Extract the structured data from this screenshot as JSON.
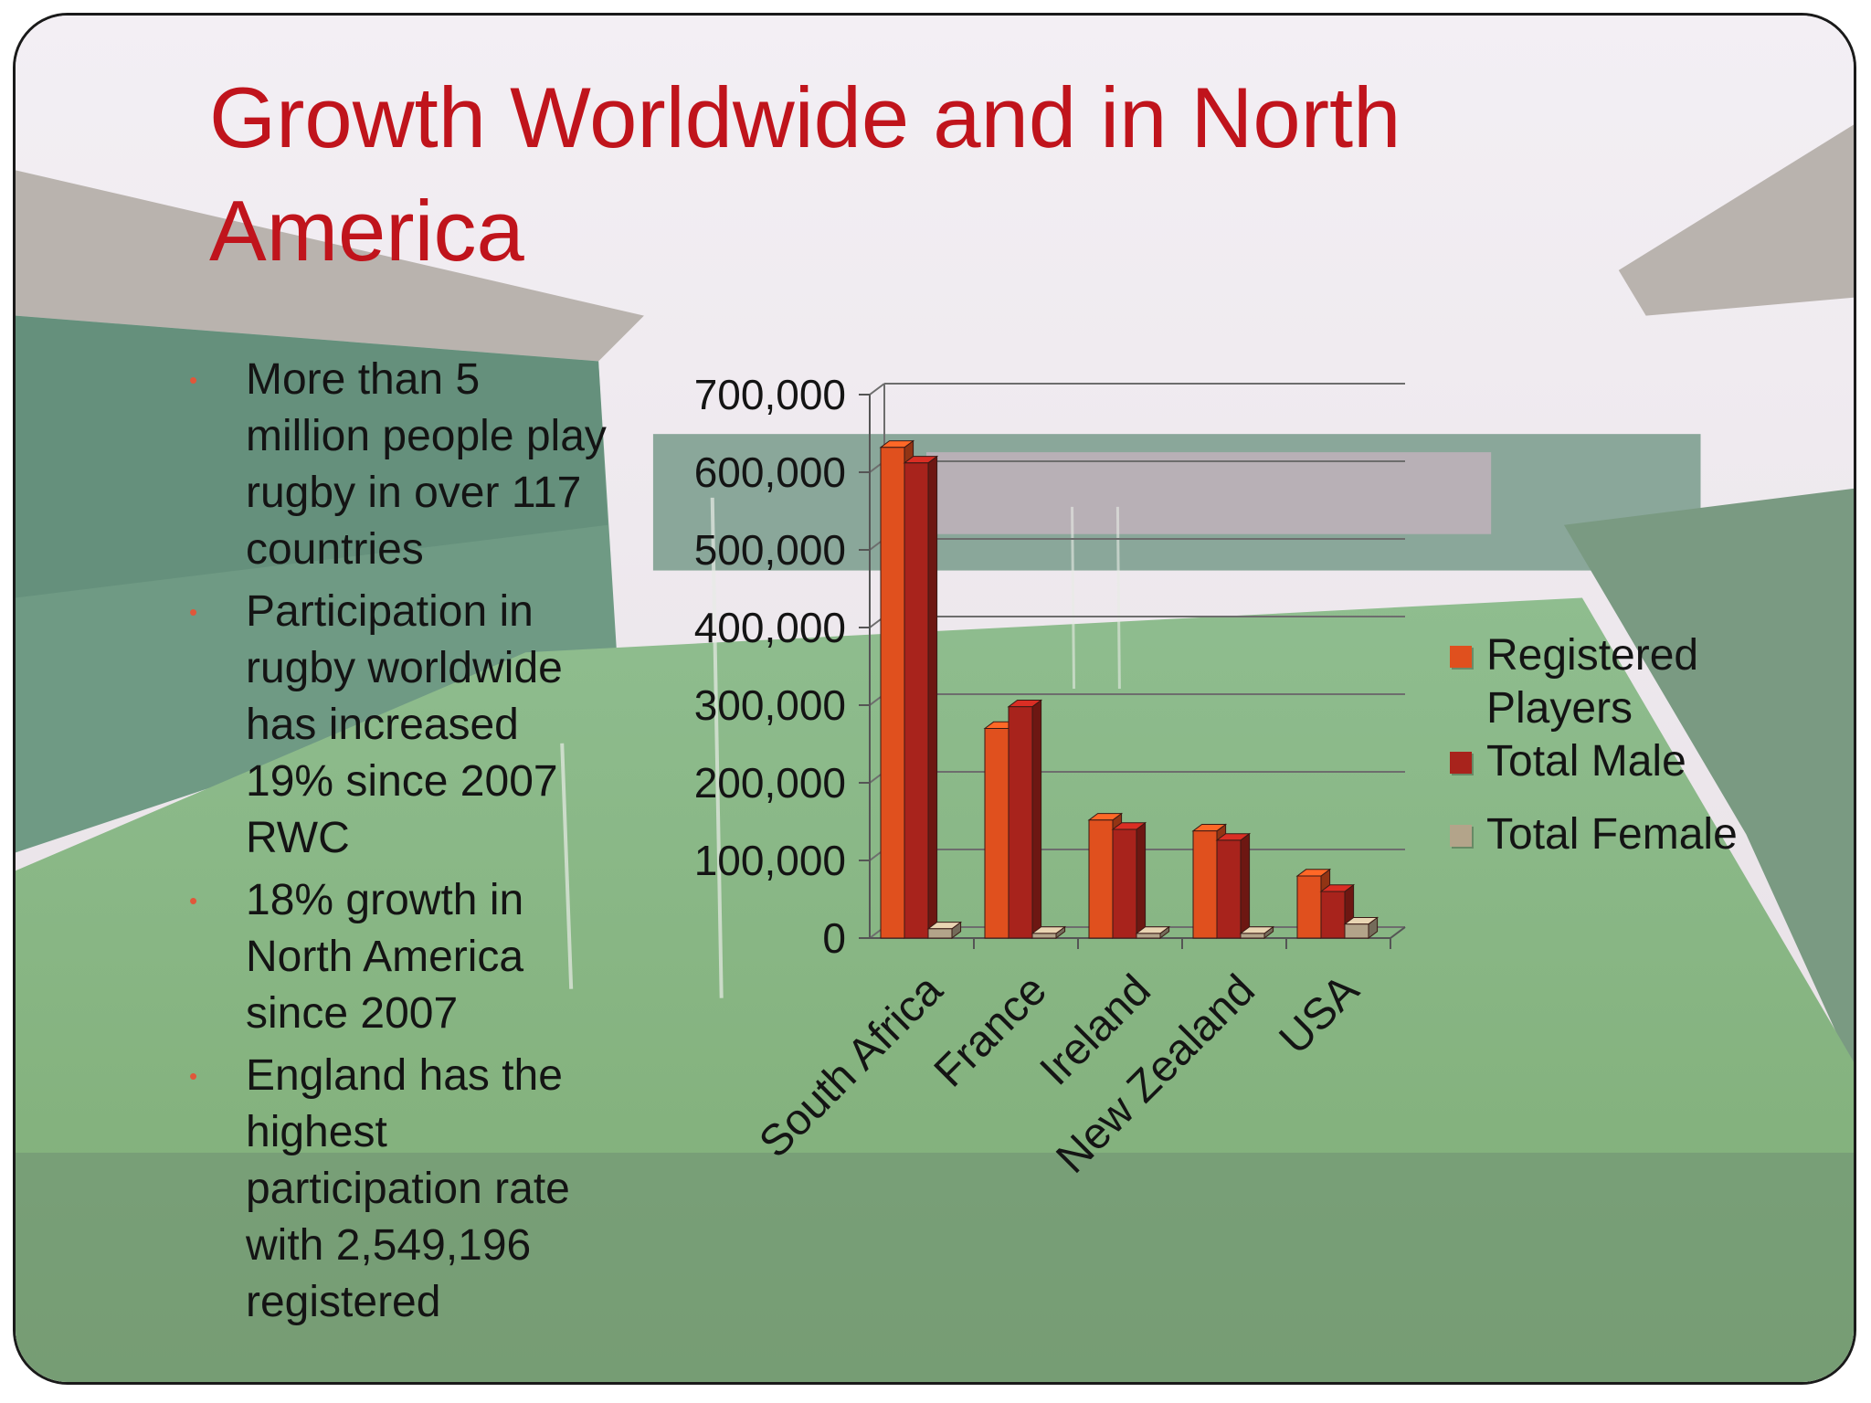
{
  "slide": {
    "title": "Growth Worldwide and in North America",
    "bullets": [
      "More than 5 million people play rugby in over 117 countries",
      "Participation in rugby worldwide has increased 19% since 2007 RWC",
      "18% growth in North America since 2007",
      "England has the highest participation rate with 2,549,196 registered"
    ],
    "bullet_color": "#e0573a",
    "title_color": "#c0141c"
  },
  "chart_data": {
    "type": "bar",
    "categories": [
      "South Africa",
      "France",
      "Ireland",
      "New Zealand",
      "USA"
    ],
    "series": [
      {
        "name": "Registered Players",
        "values": [
          632000,
          270000,
          152000,
          138000,
          80000
        ],
        "color": "#e0501e"
      },
      {
        "name": "Total Male",
        "values": [
          612000,
          298000,
          140000,
          126000,
          60000
        ],
        "color": "#a8231c"
      },
      {
        "name": "Total Female",
        "values": [
          12000,
          6000,
          6000,
          6000,
          18000
        ],
        "color": "#b3a48a"
      }
    ],
    "yticks": [
      "0",
      "100,000",
      "200,000",
      "300,000",
      "400,000",
      "500,000",
      "600,000",
      "700,000"
    ],
    "ylim": [
      0,
      700000
    ],
    "grid": true,
    "legend_position": "right",
    "style": "3d-clustered-column"
  }
}
